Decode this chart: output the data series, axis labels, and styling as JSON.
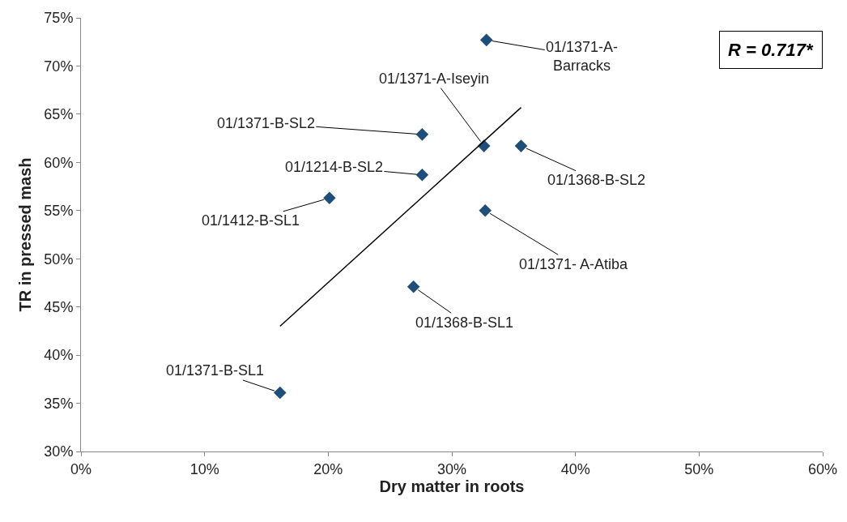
{
  "chart_data": {
    "type": "scatter",
    "xlabel": "Dry matter in roots",
    "ylabel": "TR in pressed mash",
    "x": [
      32.8,
      27.6,
      32.6,
      35.6,
      27.6,
      20.1,
      32.7,
      26.9,
      16.1
    ],
    "series": [
      {
        "color": "#1f4e79",
        "marker": "diamond",
        "values": [
          72.7,
          62.9,
          61.7,
          61.7,
          58.7,
          56.3,
          55.0,
          47.1,
          36.1
        ]
      },
      {
        "type": "line",
        "color": "#000000",
        "x": [
          16.1,
          35.6
        ],
        "values": [
          43.0,
          65.7
        ]
      }
    ],
    "xlim": [
      0,
      60
    ],
    "ylim": [
      30,
      75
    ],
    "xticks": [
      {
        "value": 0,
        "label": "0%"
      },
      {
        "value": 10,
        "label": "10%"
      },
      {
        "value": 20,
        "label": "20%"
      },
      {
        "value": 30,
        "label": "30%"
      },
      {
        "value": 40,
        "label": "40%"
      },
      {
        "value": 50,
        "label": "50%"
      },
      {
        "value": 60,
        "label": "60%"
      }
    ],
    "yticks": [
      {
        "value": 30,
        "label": "30%"
      },
      {
        "value": 35,
        "label": "35%"
      },
      {
        "value": 40,
        "label": "40%"
      },
      {
        "value": 45,
        "label": "45%"
      },
      {
        "value": 50,
        "label": "50%"
      },
      {
        "value": 55,
        "label": "55%"
      },
      {
        "value": 60,
        "label": "60%"
      },
      {
        "value": 65,
        "label": "65%"
      },
      {
        "value": 70,
        "label": "70%"
      },
      {
        "value": 75,
        "label": "75%"
      }
    ],
    "legend": false,
    "annotations": [
      {
        "text": "01/1371-A-\nBarracks",
        "x": 32.8,
        "y": 72.7
      },
      {
        "text": "01/1371-B-SL2",
        "x": 27.6,
        "y": 62.9
      },
      {
        "text": "01/1371-A-Iseyin",
        "x": 32.6,
        "y": 61.7
      },
      {
        "text": "01/1368-B-SL2",
        "x": 35.6,
        "y": 61.7
      },
      {
        "text": "01/1214-B-SL2",
        "x": 27.6,
        "y": 58.7
      },
      {
        "text": "01/1412-B-SL1",
        "x": 20.1,
        "y": 56.3
      },
      {
        "text": "01/1371- A-Atiba",
        "x": 32.7,
        "y": 55.0
      },
      {
        "text": "01/1368-B-SL1",
        "x": 26.9,
        "y": 47.1
      },
      {
        "text": "01/1371-B-SL1",
        "x": 16.1,
        "y": 36.1
      },
      "R = 0.717*"
    ]
  }
}
